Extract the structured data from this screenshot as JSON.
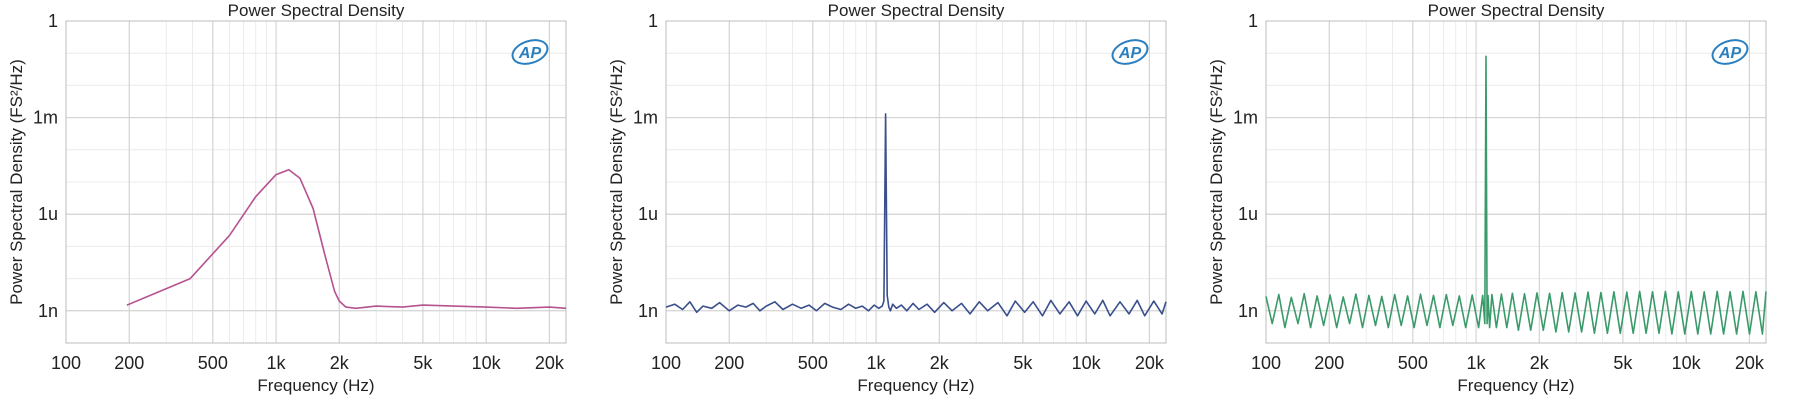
{
  "chart_data": [
    {
      "type": "line",
      "title": "Power Spectral Density",
      "xlabel": "Frequency (Hz)",
      "ylabel": "Power Spectral Density (FS²/Hz)",
      "xscale": "log",
      "yscale": "log",
      "xlim": [
        100,
        24000
      ],
      "ylim": [
        1e-10,
        1
      ],
      "grid": true,
      "x_ticks": [
        {
          "value": 100,
          "label": "100"
        },
        {
          "value": 200,
          "label": "200"
        },
        {
          "value": 500,
          "label": "500"
        },
        {
          "value": 1000,
          "label": "1k"
        },
        {
          "value": 2000,
          "label": "2k"
        },
        {
          "value": 5000,
          "label": "5k"
        },
        {
          "value": 10000,
          "label": "10k"
        },
        {
          "value": 20000,
          "label": "20k"
        }
      ],
      "y_ticks": [
        {
          "value": 1,
          "label": "1"
        },
        {
          "value": 0.001,
          "label": "1m"
        },
        {
          "value": 1e-06,
          "label": "1u"
        },
        {
          "value": 1e-09,
          "label": "1n"
        }
      ],
      "logo": "AP",
      "series": [
        {
          "color": "#b5528f",
          "x": [
            195,
            390,
            600,
            800,
            1000,
            1150,
            1300,
            1500,
            1700,
            1900,
            2000,
            2150,
            2400,
            3000,
            4000,
            5000,
            7000,
            10000,
            14000,
            20000,
            24000
          ],
          "y": [
            1.5e-09,
            1e-08,
            2.2e-07,
            3.5e-06,
            1.7e-05,
            2.4e-05,
            1.3e-05,
            1.5e-06,
            6e-08,
            4e-09,
            2e-09,
            1.3e-09,
            1.2e-09,
            1.4e-09,
            1.3e-09,
            1.5e-09,
            1.4e-09,
            1.3e-09,
            1.2e-09,
            1.3e-09,
            1.2e-09
          ]
        }
      ]
    },
    {
      "type": "line",
      "title": "Power Spectral Density",
      "xlabel": "Frequency (Hz)",
      "ylabel": "Power Spectral Density (FS²/Hz)",
      "xscale": "log",
      "yscale": "log",
      "xlim": [
        100,
        24000
      ],
      "ylim": [
        1e-10,
        1
      ],
      "grid": true,
      "x_ticks": [
        {
          "value": 100,
          "label": "100"
        },
        {
          "value": 200,
          "label": "200"
        },
        {
          "value": 500,
          "label": "500"
        },
        {
          "value": 1000,
          "label": "1k"
        },
        {
          "value": 2000,
          "label": "2k"
        },
        {
          "value": 5000,
          "label": "5k"
        },
        {
          "value": 10000,
          "label": "10k"
        },
        {
          "value": 20000,
          "label": "20k"
        }
      ],
      "y_ticks": [
        {
          "value": 1,
          "label": "1"
        },
        {
          "value": 0.001,
          "label": "1m"
        },
        {
          "value": 1e-06,
          "label": "1u"
        },
        {
          "value": 1e-09,
          "label": "1n"
        }
      ],
      "logo": "AP",
      "series": [
        {
          "color": "#3a4f8c",
          "x": [
            100,
            110,
            120,
            130,
            140,
            150,
            165,
            180,
            200,
            220,
            240,
            260,
            280,
            300,
            330,
            360,
            400,
            440,
            480,
            520,
            570,
            620,
            680,
            740,
            800,
            860,
            920,
            980,
            1030,
            1070,
            1090,
            1110,
            1130,
            1150,
            1170,
            1200,
            1250,
            1320,
            1400,
            1500,
            1600,
            1750,
            1900,
            2100,
            2300,
            2550,
            2800,
            3100,
            3400,
            3800,
            4200,
            4600,
            5100,
            5600,
            6200,
            6800,
            7500,
            8300,
            9100,
            10000,
            11000,
            12000,
            13000,
            14500,
            16000,
            17500,
            19000,
            21000,
            23000,
            24000
          ],
          "y": [
            1.3e-09,
            1.6e-09,
            1.1e-09,
            1.9e-09,
            9e-10,
            1.4e-09,
            1.2e-09,
            1.8e-09,
            1e-09,
            1.5e-09,
            1.3e-09,
            1.7e-09,
            1e-09,
            1.4e-09,
            1.9e-09,
            1.1e-09,
            1.6e-09,
            1.2e-09,
            1.5e-09,
            1e-09,
            1.7e-09,
            1.3e-09,
            1.1e-09,
            1.6e-09,
            1.2e-09,
            1.4e-09,
            1e-09,
            1.5e-09,
            1.2e-09,
            1.4e-09,
            2e-09,
            0.0013,
            3e-09,
            1.3e-09,
            1e-09,
            1.6e-09,
            1.2e-09,
            1.5e-09,
            1e-09,
            1.7e-09,
            1.1e-09,
            1.6e-09,
            9e-10,
            1.8e-09,
            1e-09,
            1.7e-09,
            8e-10,
            1.9e-09,
            1e-09,
            1.8e-09,
            7e-10,
            2e-09,
            9e-10,
            1.9e-09,
            7e-10,
            2.1e-09,
            8e-10,
            1.9e-09,
            7e-10,
            2e-09,
            8e-10,
            2.1e-09,
            7e-10,
            1.9e-09,
            8e-10,
            2.1e-09,
            7e-10,
            2e-09,
            8e-10,
            1.9e-09
          ]
        }
      ]
    },
    {
      "type": "line",
      "title": "Power Spectral Density",
      "xlabel": "Frequency (Hz)",
      "ylabel": "Power Spectral Density (FS²/Hz)",
      "xscale": "log",
      "yscale": "log",
      "xlim": [
        100,
        24000
      ],
      "ylim": [
        1e-10,
        1
      ],
      "grid": true,
      "x_ticks": [
        {
          "value": 100,
          "label": "100"
        },
        {
          "value": 200,
          "label": "200"
        },
        {
          "value": 500,
          "label": "500"
        },
        {
          "value": 1000,
          "label": "1k"
        },
        {
          "value": 2000,
          "label": "2k"
        },
        {
          "value": 5000,
          "label": "5k"
        },
        {
          "value": 10000,
          "label": "10k"
        },
        {
          "value": 20000,
          "label": "20k"
        }
      ],
      "y_ticks": [
        {
          "value": 1,
          "label": "1"
        },
        {
          "value": 0.001,
          "label": "1m"
        },
        {
          "value": 1e-06,
          "label": "1u"
        },
        {
          "value": 1e-09,
          "label": "1n"
        }
      ],
      "logo": "AP",
      "series": [
        {
          "color": "#3a9a6a",
          "x": [
            100,
            107,
            115,
            123,
            132,
            142,
            152,
            163,
            175,
            188,
            202,
            217,
            233,
            250,
            268,
            288,
            309,
            332,
            356,
            382,
            410,
            440,
            472,
            507,
            544,
            584,
            627,
            673,
            722,
            775,
            832,
            893,
            958,
            1028,
            1075,
            1100,
            1115,
            1128,
            1140,
            1160,
            1190,
            1250,
            1320,
            1400,
            1490,
            1590,
            1700,
            1820,
            1950,
            2090,
            2240,
            2400,
            2570,
            2760,
            2960,
            3180,
            3410,
            3660,
            3930,
            4220,
            4530,
            4860,
            5220,
            5600,
            6010,
            6450,
            6920,
            7430,
            7970,
            8560,
            9180,
            9860,
            10580,
            11360,
            12190,
            13090,
            14050,
            15080,
            16190,
            17380,
            18650,
            20020,
            21490,
            23070,
            24000
          ],
          "y": [
            2.8e-09,
            4e-10,
            3.2e-09,
            3e-10,
            2.6e-09,
            4e-10,
            3.4e-09,
            3e-10,
            2.9e-09,
            3.5e-10,
            3.1e-09,
            3e-10,
            2.7e-09,
            4e-10,
            3.3e-09,
            3e-10,
            3e-09,
            3.5e-10,
            2.8e-09,
            3e-10,
            3.2e-09,
            3.5e-10,
            2.9e-09,
            3e-10,
            3.3e-09,
            3.5e-10,
            3e-09,
            3e-10,
            3.2e-09,
            3.5e-10,
            2.9e-09,
            3e-10,
            3.1e-09,
            3e-10,
            3e-09,
            4e-10,
            0.08,
            4e-10,
            3e-09,
            3e-10,
            3.2e-09,
            3e-10,
            3.3e-09,
            3e-10,
            3.5e-09,
            2.5e-10,
            3.4e-09,
            2.5e-10,
            3.6e-09,
            2.5e-10,
            3.5e-09,
            2.2e-10,
            3.7e-09,
            2.2e-10,
            3.6e-09,
            2.2e-10,
            3.8e-09,
            2e-10,
            3.7e-09,
            2e-10,
            3.9e-09,
            2e-10,
            3.8e-09,
            2e-10,
            4e-09,
            2e-10,
            3.9e-09,
            2e-10,
            4e-09,
            1.9e-10,
            3.9e-09,
            1.9e-10,
            4e-09,
            1.9e-10,
            3.9e-09,
            1.9e-10,
            4e-09,
            1.9e-10,
            3.9e-09,
            1.9e-10,
            4e-09,
            1.9e-10,
            3.9e-09,
            1.9e-10,
            4e-09
          ]
        }
      ]
    }
  ]
}
